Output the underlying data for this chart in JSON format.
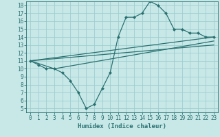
{
  "xlabel": "Humidex (Indice chaleur)",
  "xlim": [
    -0.5,
    23.5
  ],
  "ylim": [
    4.5,
    18.5
  ],
  "xticks": [
    0,
    1,
    2,
    3,
    4,
    5,
    6,
    7,
    8,
    9,
    10,
    11,
    12,
    13,
    14,
    15,
    16,
    17,
    18,
    19,
    20,
    21,
    22,
    23
  ],
  "yticks": [
    5,
    6,
    7,
    8,
    9,
    10,
    11,
    12,
    13,
    14,
    15,
    16,
    17,
    18
  ],
  "bg_color": "#c8e8e8",
  "grid_color": "#9ecece",
  "line_color": "#2a7070",
  "series": [
    {
      "x": [
        0,
        1,
        2,
        3,
        4,
        5,
        6,
        7,
        8,
        9,
        10,
        11,
        12,
        13,
        14,
        15,
        16,
        17,
        18,
        19,
        20,
        21,
        22,
        23
      ],
      "y": [
        11,
        10.5,
        10,
        10,
        9.5,
        8.5,
        7,
        5,
        5.5,
        7.5,
        9.5,
        14,
        16.5,
        16.5,
        17,
        18.5,
        18,
        17,
        15,
        15,
        14.5,
        14.5,
        14,
        14
      ]
    },
    {
      "x": [
        0,
        23
      ],
      "y": [
        11,
        14
      ]
    },
    {
      "x": [
        0,
        3,
        23
      ],
      "y": [
        11,
        10,
        13.5
      ]
    },
    {
      "x": [
        0,
        23
      ],
      "y": [
        11,
        13
      ]
    }
  ],
  "font_size_ticks": 5.5,
  "font_size_xlabel": 6.5,
  "line_width": 0.9,
  "marker_size": 2.5
}
